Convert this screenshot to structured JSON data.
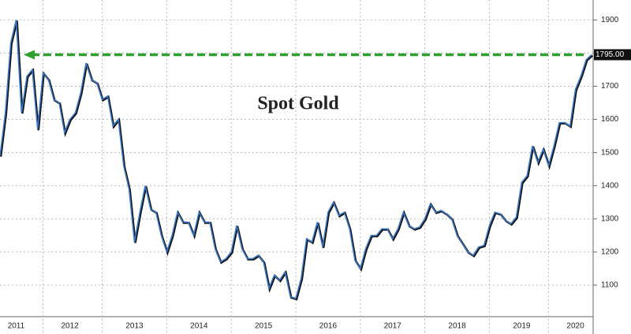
{
  "chart_data": {
    "type": "line",
    "title": "Spot Gold",
    "categories": [
      null,
      null,
      null,
      "2011",
      null,
      null,
      null,
      null,
      null,
      null,
      null,
      null,
      null,
      "2012",
      null,
      null,
      null,
      null,
      null,
      null,
      null,
      null,
      null,
      null,
      null,
      "2013",
      null,
      null,
      null,
      null,
      null,
      null,
      null,
      null,
      null,
      null,
      null,
      "2014",
      null,
      null,
      null,
      null,
      null,
      null,
      null,
      null,
      null,
      null,
      null,
      "2015",
      null,
      null,
      null,
      null,
      null,
      null,
      null,
      null,
      null,
      null,
      null,
      "2016",
      null,
      null,
      null,
      null,
      null,
      null,
      null,
      null,
      null,
      null,
      null,
      "2017",
      null,
      null,
      null,
      null,
      null,
      null,
      null,
      null,
      null,
      null,
      null,
      "2018",
      null,
      null,
      null,
      null,
      null,
      null,
      null,
      null,
      null,
      null,
      null,
      "2019",
      null,
      null,
      null,
      null,
      null,
      null,
      null,
      null,
      null,
      "2020",
      null,
      null,
      null
    ],
    "series": [
      {
        "name": "Spot Gold",
        "color": "#3a78c8",
        "values": [
          1490,
          1620,
          1830,
          1900,
          1620,
          1730,
          1750,
          1570,
          1740,
          1720,
          1660,
          1650,
          1560,
          1600,
          1620,
          1680,
          1770,
          1720,
          1710,
          1660,
          1670,
          1580,
          1600,
          1460,
          1390,
          1230,
          1320,
          1400,
          1330,
          1320,
          1250,
          1200,
          1250,
          1320,
          1290,
          1290,
          1250,
          1320,
          1290,
          1290,
          1210,
          1170,
          1180,
          1200,
          1280,
          1210,
          1180,
          1180,
          1190,
          1170,
          1090,
          1130,
          1115,
          1140,
          1065,
          1060,
          1120,
          1240,
          1230,
          1290,
          1215,
          1320,
          1350,
          1310,
          1320,
          1270,
          1175,
          1150,
          1210,
          1250,
          1250,
          1270,
          1270,
          1240,
          1270,
          1320,
          1280,
          1270,
          1275,
          1300,
          1345,
          1320,
          1325,
          1315,
          1300,
          1250,
          1225,
          1200,
          1190,
          1215,
          1220,
          1280,
          1320,
          1315,
          1295,
          1285,
          1305,
          1410,
          1430,
          1520,
          1470,
          1510,
          1460,
          1520,
          1590,
          1590,
          1580,
          1690,
          1730,
          1780,
          1795
        ],
        "value_labels": [
          null,
          null,
          null,
          null,
          null,
          null,
          null,
          null,
          null,
          null,
          null,
          null,
          null,
          null,
          null,
          null,
          null,
          null,
          null,
          null,
          null,
          null,
          null,
          null,
          null,
          null,
          null,
          null,
          null,
          null,
          null,
          null,
          null,
          null,
          null,
          null,
          null,
          null,
          null,
          null,
          null,
          null,
          null,
          null,
          null,
          null,
          null,
          null,
          null,
          null,
          null,
          null,
          null,
          null,
          null,
          null,
          null,
          null,
          null,
          null,
          null,
          null,
          null,
          null,
          null,
          null,
          null,
          null,
          null,
          null,
          null,
          null,
          null,
          null,
          null,
          null,
          null,
          null,
          null,
          null,
          null,
          null,
          null,
          null,
          null,
          null,
          null,
          null,
          null,
          null,
          null,
          null,
          null,
          null,
          null,
          null,
          null,
          null,
          null,
          null,
          null,
          null,
          null,
          null,
          null,
          null,
          null,
          null,
          null,
          null,
          "1795.00"
        ]
      }
    ],
    "ylim": [
      1005,
      1960
    ],
    "yticks": [
      1100,
      1200,
      1300,
      1400,
      1500,
      1600,
      1700,
      1800,
      1900
    ],
    "annotation_color": "#2ea02e",
    "grid": true
  }
}
